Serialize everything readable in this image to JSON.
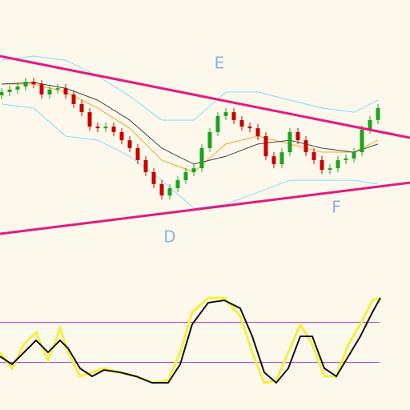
{
  "chart_data": [
    {
      "type": "candlestick",
      "x": [
        0,
        1,
        2,
        3,
        4,
        5,
        6,
        7,
        8,
        9,
        10,
        11,
        12,
        13,
        14,
        15,
        16,
        17,
        18,
        19,
        20,
        21,
        22,
        23,
        24,
        25,
        26,
        27,
        28,
        29,
        30,
        31,
        32,
        33,
        34,
        35,
        36,
        37,
        38,
        39,
        40,
        41,
        42,
        43,
        44,
        45,
        46,
        47
      ],
      "open": [
        65.0,
        66.2,
        67.1,
        68.2,
        70.0,
        69.1,
        65.3,
        67.1,
        67.6,
        65.3,
        61.8,
        58.8,
        53.5,
        52.9,
        53.5,
        51.5,
        48.5,
        45.6,
        41.2,
        36.8,
        32.4,
        28.2,
        30.9,
        33.8,
        36.8,
        38.2,
        45.6,
        51.5,
        57.4,
        58.8,
        55.9,
        53.5,
        52.9,
        50.0,
        42.6,
        39.7,
        44.1,
        51.5,
        48.5,
        44.1,
        41.2,
        37.6,
        38.2,
        41.2,
        41.8,
        44.1,
        52.4,
        55.9
      ],
      "high": [
        67.7,
        68.6,
        69.7,
        71.5,
        71.5,
        70.6,
        68.6,
        69.1,
        69.1,
        66.8,
        63.3,
        60.3,
        55.0,
        55.0,
        55.0,
        53.0,
        50.0,
        47.1,
        42.7,
        38.3,
        33.9,
        32.4,
        35.3,
        38.3,
        39.7,
        47.1,
        53.0,
        58.9,
        60.3,
        60.3,
        57.4,
        55.0,
        54.4,
        51.5,
        44.1,
        45.6,
        53.0,
        53.0,
        50.0,
        45.6,
        42.7,
        39.7,
        42.7,
        43.3,
        45.6,
        53.9,
        57.4,
        61.8
      ],
      "low": [
        63.5,
        64.7,
        65.6,
        66.7,
        67.6,
        63.8,
        63.8,
        65.6,
        63.8,
        60.3,
        57.3,
        52.0,
        51.4,
        51.4,
        50.0,
        47.0,
        44.1,
        39.7,
        35.3,
        30.9,
        26.7,
        26.7,
        29.4,
        32.3,
        35.3,
        36.7,
        44.1,
        50.0,
        55.9,
        54.4,
        52.0,
        51.4,
        48.5,
        41.1,
        38.2,
        38.2,
        42.6,
        47.0,
        42.6,
        39.7,
        36.1,
        36.1,
        36.7,
        39.7,
        40.3,
        42.6,
        50.9,
        54.4
      ],
      "close": [
        66.2,
        67.1,
        68.2,
        70.0,
        69.1,
        65.3,
        67.1,
        67.6,
        65.3,
        61.8,
        58.8,
        53.5,
        52.9,
        53.5,
        51.5,
        48.5,
        45.6,
        41.2,
        36.8,
        32.4,
        28.2,
        30.9,
        33.8,
        36.8,
        38.2,
        45.6,
        51.5,
        57.4,
        58.8,
        55.9,
        53.5,
        52.9,
        50.0,
        42.6,
        39.7,
        44.1,
        51.5,
        48.5,
        44.1,
        41.2,
        37.6,
        38.2,
        41.2,
        41.8,
        44.1,
        52.4,
        55.9,
        60.3
      ],
      "up_color": "#1fa31f",
      "down_color": "#c80000",
      "lines": [
        {
          "color": "#7fdfff",
          "x": [
            0,
            4,
            8,
            12,
            16,
            20,
            24,
            28,
            32,
            36,
            40,
            44,
            47
          ],
          "values": [
            77.9,
            79.4,
            77.9,
            72.1,
            64.7,
            55.9,
            55.9,
            66.2,
            66.2,
            63.2,
            60.3,
            58.8,
            63.2
          ]
        },
        {
          "color": "#7fdfff",
          "x": [
            0,
            4,
            8,
            12,
            16,
            20,
            24,
            28,
            32,
            36,
            40,
            44,
            47
          ],
          "values": [
            61.8,
            60.3,
            50.0,
            48.5,
            42.6,
            33.8,
            23.5,
            25.0,
            29.4,
            33.8,
            33.8,
            33.8,
            32.4
          ]
        },
        {
          "color": "#f5a623",
          "x": [
            0,
            4,
            8,
            12,
            16,
            20,
            24,
            28,
            32,
            36,
            40,
            44,
            47
          ],
          "values": [
            69.1,
            69.1,
            66.2,
            60.3,
            52.9,
            41.2,
            36.8,
            47.1,
            50.0,
            47.1,
            44.1,
            44.1,
            48.5
          ]
        },
        {
          "color": "#444444",
          "x": [
            0,
            4,
            8,
            12,
            16,
            20,
            24,
            28,
            32,
            36,
            40,
            44,
            47
          ],
          "values": [
            69.1,
            69.7,
            67.6,
            63.2,
            55.9,
            45.6,
            39.7,
            42.6,
            47.1,
            48.5,
            45.6,
            44.1,
            47.1
          ]
        }
      ],
      "trendlines": [
        {
          "color": "#e6197e",
          "x": [
            -0.2,
            51
          ],
          "values": [
            79.4,
            49.4
          ]
        },
        {
          "color": "#e6197e",
          "x": [
            -0.2,
            51
          ],
          "values": [
            14.1,
            32.9
          ]
        }
      ],
      "annotations": [
        "E",
        "D",
        "F"
      ],
      "xlim": [
        -0.2,
        51
      ],
      "ylim": [
        0,
        100
      ]
    },
    {
      "type": "line",
      "x": [
        -0.2,
        1.3,
        2.8,
        4.3,
        5.8,
        7.3,
        8.3,
        9.8,
        11.3,
        12.8,
        14.8,
        16.8,
        18.8,
        20.8,
        22.3,
        23.8,
        25.8,
        27.8,
        29.8,
        31.3,
        32.8,
        34.3,
        35.8,
        37.3,
        38.8,
        40.3,
        41.8,
        43.3,
        44.8,
        46.3,
        47.3
      ],
      "series": [
        {
          "color": "#f5f03c",
          "values": [
            40,
            24,
            48,
            60,
            32,
            64,
            40,
            16,
            20,
            24,
            20,
            16,
            9.6,
            12,
            40,
            80,
            94.4,
            94.4,
            76,
            40,
            9.6,
            12,
            40,
            68,
            48,
            16,
            16,
            48,
            68,
            92,
            94.4
          ]
        },
        {
          "color": "#111111",
          "values": [
            36,
            28,
            40,
            52,
            40,
            52,
            44,
            24,
            16,
            22.4,
            20,
            16,
            9.6,
            9.6,
            28,
            68,
            89.6,
            92,
            84,
            56,
            20,
            9.6,
            24,
            56,
            56,
            24,
            16,
            36,
            56,
            80,
            94.4
          ]
        }
      ],
      "levels": [
        70,
        30
      ],
      "level_color": "#c040c0",
      "xlim": [
        -0.2,
        51
      ],
      "ylim": [
        0,
        100
      ]
    }
  ]
}
